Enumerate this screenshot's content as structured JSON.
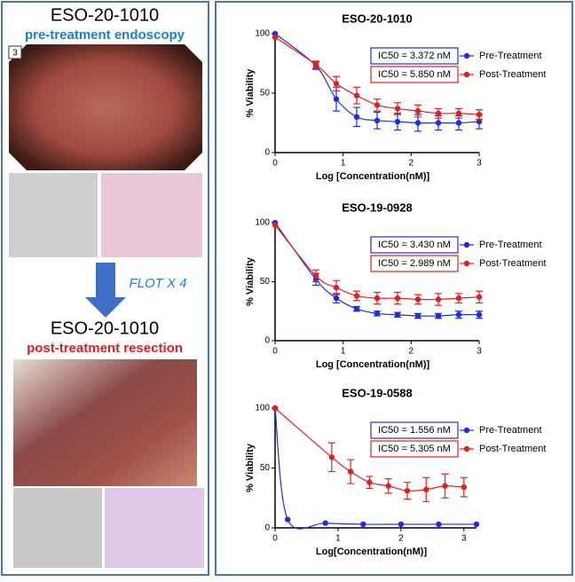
{
  "panel": {
    "sample_id_top": "ESO-20-1010",
    "top_caption": "pre-treatment endoscopy",
    "image_number": "3",
    "arrow_label": "FLOT X 4",
    "sample_id_bottom": "ESO-20-1010",
    "bottom_caption": "post-treatment resection"
  },
  "chart_data": [
    {
      "type": "scatter",
      "title": "ESO-20-1010",
      "x_label": "Log [Concentration(nM)]",
      "y_label": "% Viability",
      "xlim": [
        0,
        3
      ],
      "ylim": [
        0,
        100
      ],
      "xticks": [
        0,
        1,
        2,
        3
      ],
      "yticks": [
        0,
        50,
        100
      ],
      "series": [
        {
          "name": "Pre-Treatment",
          "color": "#1f2de0",
          "annotation": "IC50 = 3.372 nM",
          "x": [
            0,
            0.6,
            0.9,
            1.2,
            1.5,
            1.8,
            2.1,
            2.4,
            2.7,
            3.0
          ],
          "values": [
            100,
            73,
            45,
            30,
            27,
            26,
            25,
            25,
            25,
            26
          ],
          "errors": [
            0,
            3,
            10,
            8,
            7,
            7,
            7,
            6,
            6,
            6
          ]
        },
        {
          "name": "Post-Treatment",
          "color": "#e02020",
          "annotation": "IC50 = 5.850 nM",
          "x": [
            0,
            0.6,
            0.9,
            1.2,
            1.5,
            1.8,
            2.1,
            2.4,
            2.7,
            3.0
          ],
          "values": [
            97,
            74,
            58,
            48,
            40,
            37,
            35,
            33,
            33,
            32
          ],
          "errors": [
            0,
            3,
            6,
            7,
            5,
            5,
            5,
            4,
            4,
            4
          ]
        }
      ]
    },
    {
      "type": "scatter",
      "title": "ESO-19-0928",
      "x_label": "Log [Concentration(nM)]",
      "y_label": "% Viability",
      "xlim": [
        0,
        3
      ],
      "ylim": [
        0,
        100
      ],
      "xticks": [
        0,
        1,
        2,
        3
      ],
      "yticks": [
        0,
        50,
        100
      ],
      "series": [
        {
          "name": "Pre-Treatment",
          "color": "#1f2de0",
          "annotation": "IC50 = 3.430 nM",
          "x": [
            0,
            0.6,
            0.9,
            1.2,
            1.5,
            1.8,
            2.1,
            2.4,
            2.7,
            3.0
          ],
          "values": [
            100,
            52,
            36,
            27,
            23,
            22,
            21,
            21,
            22,
            22
          ],
          "errors": [
            0,
            5,
            4,
            2,
            2,
            2,
            2,
            2,
            3,
            3
          ]
        },
        {
          "name": "Post-Treatment",
          "color": "#e02020",
          "annotation": "IC50 = 2.989 nM",
          "x": [
            0,
            0.6,
            0.9,
            1.2,
            1.5,
            1.8,
            2.1,
            2.4,
            2.7,
            3.0
          ],
          "values": [
            98,
            55,
            45,
            38,
            36,
            36,
            35,
            35,
            36,
            37
          ],
          "errors": [
            0,
            5,
            6,
            4,
            5,
            5,
            4,
            5,
            4,
            5
          ]
        }
      ]
    },
    {
      "type": "scatter",
      "title": "ESO-19-0588",
      "x_label": "Log[Concentration(nM)]",
      "y_label": "% Viability",
      "xlim": [
        0,
        3.2
      ],
      "ylim": [
        0,
        100
      ],
      "xticks": [
        0,
        1,
        2,
        3
      ],
      "yticks": [
        0,
        50,
        100
      ],
      "series": [
        {
          "name": "Pre-Treatment",
          "color": "#1f2de0",
          "annotation": "IC50 = 1.556 nM",
          "x": [
            0,
            0.2,
            0.8,
            1.4,
            2.0,
            2.6,
            3.2
          ],
          "values": [
            100,
            7,
            4,
            3,
            3,
            3,
            3
          ],
          "errors": [
            0,
            0,
            0,
            0,
            0,
            0,
            0
          ]
        },
        {
          "name": "Post-Treatment",
          "color": "#e02020",
          "annotation": "IC50 = 5.305 nM",
          "x": [
            0,
            0.9,
            1.2,
            1.5,
            1.8,
            2.1,
            2.4,
            2.7,
            3.0
          ],
          "values": [
            100,
            59,
            47,
            38,
            35,
            31,
            32,
            35,
            34
          ],
          "errors": [
            0,
            12,
            10,
            5,
            6,
            7,
            10,
            10,
            8
          ]
        }
      ]
    }
  ]
}
